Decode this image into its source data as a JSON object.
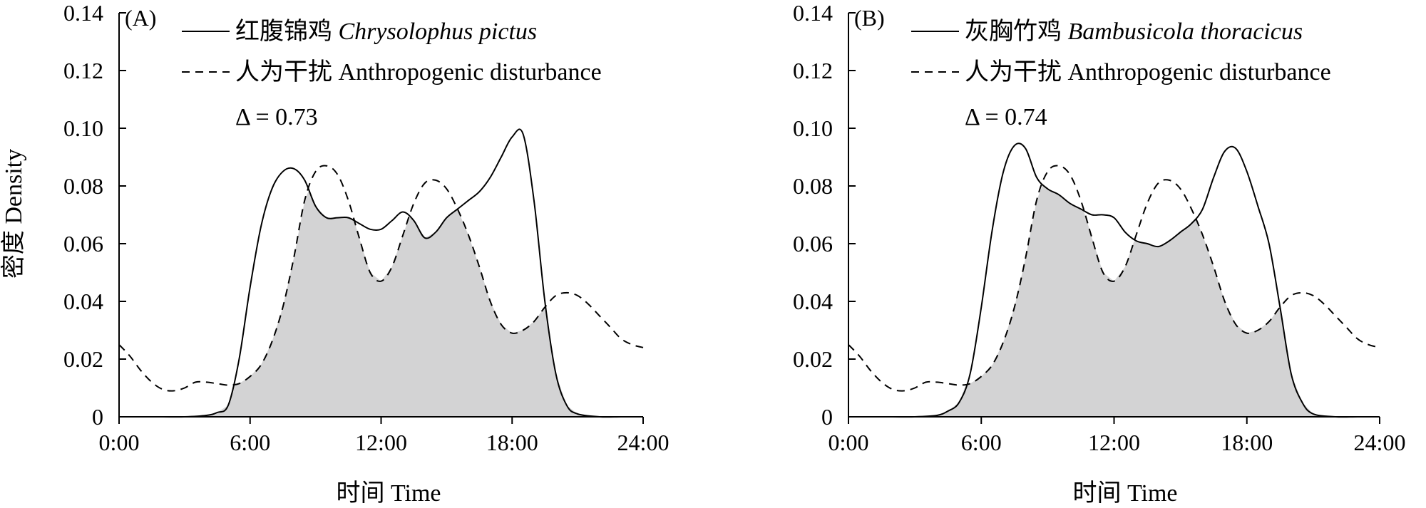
{
  "figure": {
    "ylabel": "密度 Density",
    "xlabel": "时间 Time"
  },
  "chart_data": [
    {
      "type": "line",
      "panel_label": "(A)",
      "xlim": [
        0,
        24
      ],
      "ylim": [
        0,
        0.14
      ],
      "xticks": [
        "0:00",
        "6:00",
        "12:00",
        "18:00",
        "24:00"
      ],
      "yticks": [
        "0",
        "0.02",
        "0.04",
        "0.06",
        "0.08",
        "0.10",
        "0.12",
        "0.14"
      ],
      "delta": "Δ = 0.73",
      "legend_position": "top",
      "shaded_overlap": true,
      "series": [
        {
          "name_cn": "红腹锦鸡",
          "name_latin": "Chrysolophus pictus",
          "style": "solid",
          "x": [
            0,
            1,
            2,
            3,
            4,
            4.5,
            5,
            5.5,
            6,
            6.5,
            7,
            7.5,
            8,
            8.5,
            9,
            9.5,
            10,
            10.5,
            11,
            11.5,
            12,
            12.5,
            13,
            13.5,
            14,
            14.5,
            15,
            15.5,
            16,
            16.5,
            17,
            17.5,
            18,
            18.5,
            19,
            19.5,
            20,
            20.5,
            21,
            22,
            23,
            24
          ],
          "y": [
            0,
            0,
            0,
            0,
            0.0005,
            0.0015,
            0.004,
            0.02,
            0.045,
            0.066,
            0.079,
            0.085,
            0.086,
            0.082,
            0.073,
            0.069,
            0.069,
            0.069,
            0.067,
            0.065,
            0.065,
            0.068,
            0.071,
            0.068,
            0.062,
            0.064,
            0.069,
            0.072,
            0.075,
            0.078,
            0.083,
            0.09,
            0.097,
            0.098,
            0.075,
            0.04,
            0.015,
            0.004,
            0.001,
            0,
            0,
            0
          ]
        },
        {
          "name_cn": "人为干扰",
          "name_latin": "Anthropogenic disturbance",
          "style": "dashed",
          "x": [
            0,
            0.5,
            1,
            1.5,
            2,
            2.5,
            3,
            3.5,
            4,
            4.5,
            5,
            5.5,
            6,
            6.5,
            7,
            7.5,
            8,
            8.5,
            9,
            9.5,
            10,
            10.5,
            11,
            11.5,
            12,
            12.5,
            13,
            13.5,
            14,
            14.5,
            15,
            15.5,
            16,
            16.5,
            17,
            17.5,
            18,
            18.5,
            19,
            19.5,
            20,
            20.5,
            21,
            21.5,
            22,
            22.5,
            23,
            23.5,
            24
          ],
          "y": [
            0.025,
            0.021,
            0.016,
            0.012,
            0.0095,
            0.009,
            0.01,
            0.012,
            0.012,
            0.0115,
            0.011,
            0.0115,
            0.014,
            0.018,
            0.026,
            0.038,
            0.055,
            0.075,
            0.085,
            0.087,
            0.084,
            0.075,
            0.062,
            0.05,
            0.047,
            0.052,
            0.063,
            0.074,
            0.081,
            0.082,
            0.079,
            0.072,
            0.063,
            0.052,
            0.04,
            0.032,
            0.029,
            0.03,
            0.033,
            0.038,
            0.042,
            0.043,
            0.042,
            0.039,
            0.035,
            0.031,
            0.027,
            0.025,
            0.024
          ]
        }
      ]
    },
    {
      "type": "line",
      "panel_label": "(B)",
      "xlim": [
        0,
        24
      ],
      "ylim": [
        0,
        0.14
      ],
      "xticks": [
        "0:00",
        "6:00",
        "12:00",
        "18:00",
        "24:00"
      ],
      "yticks": [
        "0",
        "0.02",
        "0.04",
        "0.06",
        "0.08",
        "0.10",
        "0.12",
        "0.14"
      ],
      "delta": "Δ = 0.74",
      "legend_position": "top",
      "shaded_overlap": true,
      "series": [
        {
          "name_cn": "灰胸竹鸡",
          "name_latin": "Bambusicola thoracicus",
          "style": "solid",
          "x": [
            0,
            1,
            2,
            3,
            4,
            4.5,
            5,
            5.5,
            6,
            6.5,
            7,
            7.5,
            8,
            8.5,
            9,
            9.5,
            10,
            10.5,
            11,
            11.5,
            12,
            12.5,
            13,
            13.5,
            14,
            14.5,
            15,
            15.5,
            16,
            16.5,
            17,
            17.5,
            18,
            18.5,
            19,
            19.5,
            20,
            20.5,
            21,
            22,
            23,
            24
          ],
          "y": [
            0,
            0,
            0,
            0,
            0.0005,
            0.002,
            0.005,
            0.015,
            0.038,
            0.065,
            0.085,
            0.094,
            0.093,
            0.083,
            0.079,
            0.077,
            0.074,
            0.072,
            0.07,
            0.07,
            0.069,
            0.064,
            0.061,
            0.06,
            0.059,
            0.061,
            0.064,
            0.067,
            0.072,
            0.083,
            0.092,
            0.093,
            0.085,
            0.073,
            0.06,
            0.038,
            0.015,
            0.005,
            0.001,
            0,
            0,
            0
          ]
        },
        {
          "name_cn": "人为干扰",
          "name_latin": "Anthropogenic disturbance",
          "style": "dashed",
          "x": [
            0,
            0.5,
            1,
            1.5,
            2,
            2.5,
            3,
            3.5,
            4,
            4.5,
            5,
            5.5,
            6,
            6.5,
            7,
            7.5,
            8,
            8.5,
            9,
            9.5,
            10,
            10.5,
            11,
            11.5,
            12,
            12.5,
            13,
            13.5,
            14,
            14.5,
            15,
            15.5,
            16,
            16.5,
            17,
            17.5,
            18,
            18.5,
            19,
            19.5,
            20,
            20.5,
            21,
            21.5,
            22,
            22.5,
            23,
            23.5,
            24
          ],
          "y": [
            0.025,
            0.021,
            0.016,
            0.012,
            0.0095,
            0.009,
            0.01,
            0.012,
            0.012,
            0.0115,
            0.011,
            0.0115,
            0.014,
            0.018,
            0.026,
            0.038,
            0.055,
            0.075,
            0.085,
            0.087,
            0.084,
            0.075,
            0.062,
            0.05,
            0.047,
            0.052,
            0.063,
            0.074,
            0.081,
            0.082,
            0.079,
            0.072,
            0.063,
            0.052,
            0.04,
            0.032,
            0.029,
            0.03,
            0.033,
            0.038,
            0.042,
            0.043,
            0.042,
            0.039,
            0.035,
            0.031,
            0.027,
            0.025,
            0.024
          ]
        }
      ]
    }
  ]
}
